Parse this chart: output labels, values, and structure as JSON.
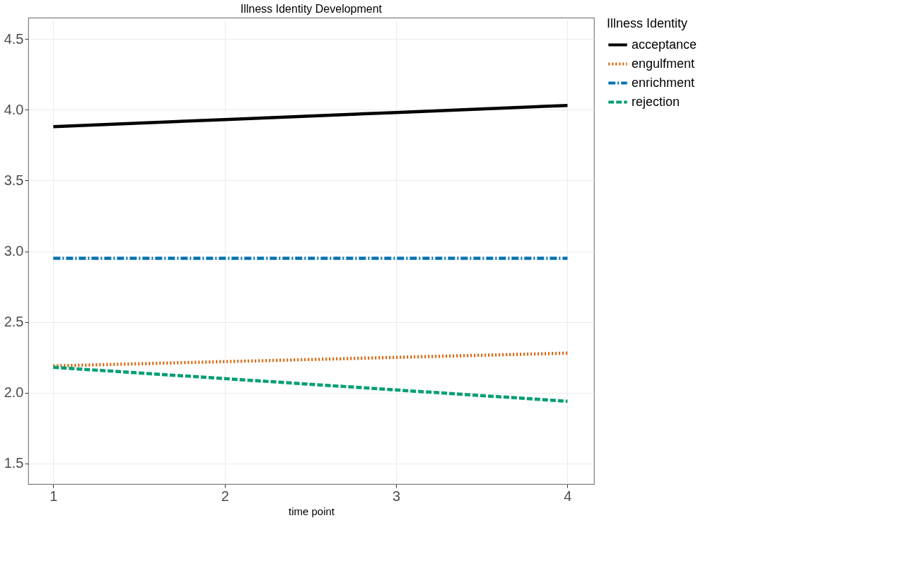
{
  "chart_data": {
    "type": "line",
    "title": "Illness Identity Development",
    "xlabel": "time point",
    "legend_title": "Illness Identity",
    "x": [
      1,
      2,
      3,
      4
    ],
    "series": [
      {
        "name": "acceptance",
        "color": "#000000",
        "line_style": "solid",
        "values": [
          3.88,
          3.93,
          3.98,
          4.03
        ]
      },
      {
        "name": "engulfment",
        "color": "#d55e00",
        "line_style": "dotted",
        "values": [
          2.19,
          2.22,
          2.25,
          2.28
        ]
      },
      {
        "name": "enrichment",
        "color": "#0072b2",
        "line_style": "dashdot",
        "values": [
          2.95,
          2.95,
          2.95,
          2.95
        ]
      },
      {
        "name": "rejection",
        "color": "#009e73",
        "line_style": "dashed",
        "values": [
          2.18,
          2.1,
          2.02,
          1.94
        ]
      }
    ],
    "xlim": [
      0.854,
      4.155
    ],
    "xticks": [
      1,
      2,
      3,
      4
    ],
    "ylim": [
      1.355,
      4.65
    ],
    "yticks": [
      {
        "value": 1.5,
        "label": "1.5"
      },
      {
        "value": 2,
        "label": "2.0"
      },
      {
        "value": 2.5,
        "label": "2.5"
      },
      {
        "value": 3,
        "label": "3.0"
      },
      {
        "value": 3.5,
        "label": "3.5"
      },
      {
        "value": 4,
        "label": "4.0"
      },
      {
        "value": 4.5,
        "label": "4.5"
      }
    ],
    "grid": true,
    "legend": "right",
    "marker": "none"
  }
}
